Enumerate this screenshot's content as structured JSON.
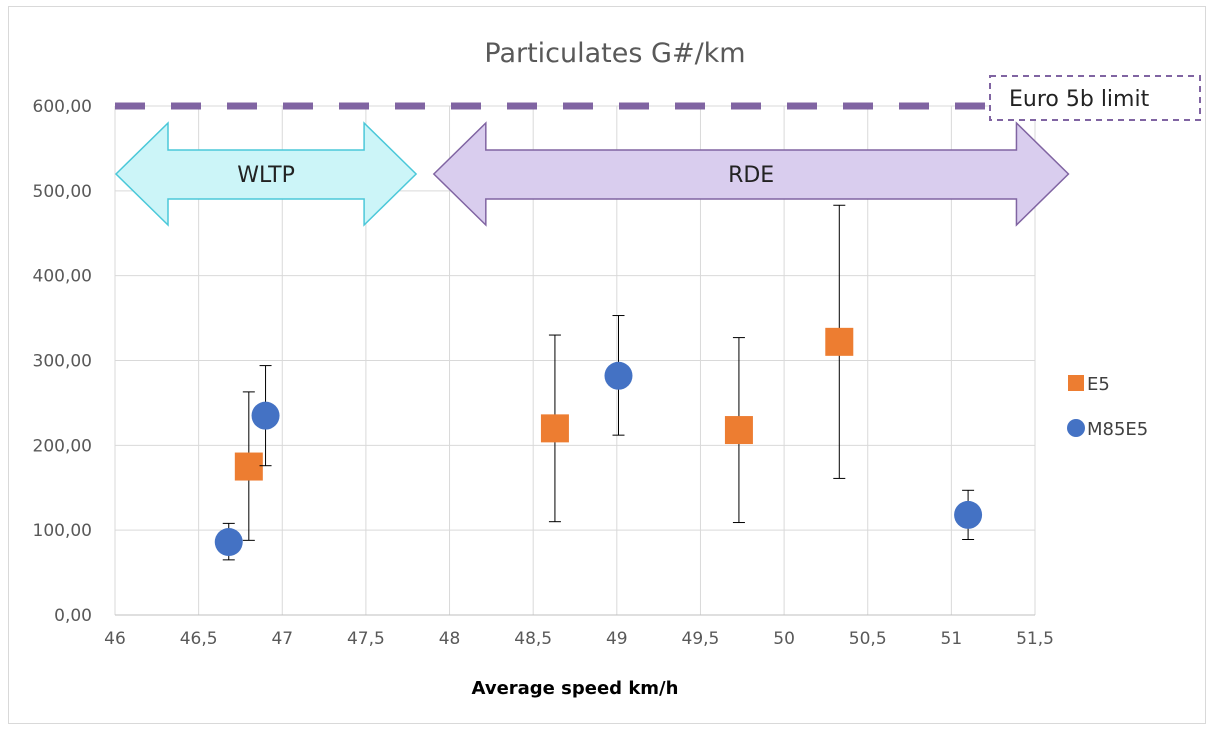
{
  "chart_data": {
    "type": "scatter",
    "title": "Particulates G#/km",
    "xlabel": "Average speed km/h",
    "ylabel": "",
    "xlim": [
      46,
      51.5
    ],
    "ylim": [
      0,
      600
    ],
    "x_ticks": [
      "46",
      "46,5",
      "47",
      "47,5",
      "48",
      "48,5",
      "49",
      "49,5",
      "50",
      "50,5",
      "51",
      "51,5"
    ],
    "y_ticks": [
      "0,00",
      "100,00",
      "200,00",
      "300,00",
      "400,00",
      "500,00",
      "600,00"
    ],
    "grid": true,
    "legend_position": "right",
    "series": [
      {
        "name": "E5",
        "marker": "square",
        "color": "#ED7D31",
        "points": [
          {
            "x": 46.8,
            "y": 175,
            "err_low": 88,
            "err_high": 263
          },
          {
            "x": 48.63,
            "y": 220,
            "err_low": 110,
            "err_high": 330
          },
          {
            "x": 49.73,
            "y": 218,
            "err_low": 109,
            "err_high": 327
          },
          {
            "x": 50.33,
            "y": 322,
            "err_low": 161,
            "err_high": 483
          }
        ]
      },
      {
        "name": "M85E5",
        "marker": "circle",
        "color": "#4472C4",
        "points": [
          {
            "x": 46.68,
            "y": 86,
            "err_low": 65,
            "err_high": 108
          },
          {
            "x": 46.9,
            "y": 235,
            "err_low": 176,
            "err_high": 294
          },
          {
            "x": 49.01,
            "y": 282,
            "err_low": 212,
            "err_high": 353
          },
          {
            "x": 51.1,
            "y": 118,
            "err_low": 89,
            "err_high": 147
          }
        ]
      }
    ],
    "reference_line": {
      "label": "Euro 5b limit",
      "y": 600,
      "color": "#8064A2"
    },
    "annotations": [
      {
        "label": "WLTP",
        "x_from": 46.0,
        "x_to": 47.8,
        "color": "#CCF5F8",
        "stroke": "#4BC8D9"
      },
      {
        "label": "RDE",
        "x_from": 47.9,
        "x_to": 51.7,
        "color": "#D9CDEE",
        "stroke": "#8064A2"
      }
    ]
  }
}
